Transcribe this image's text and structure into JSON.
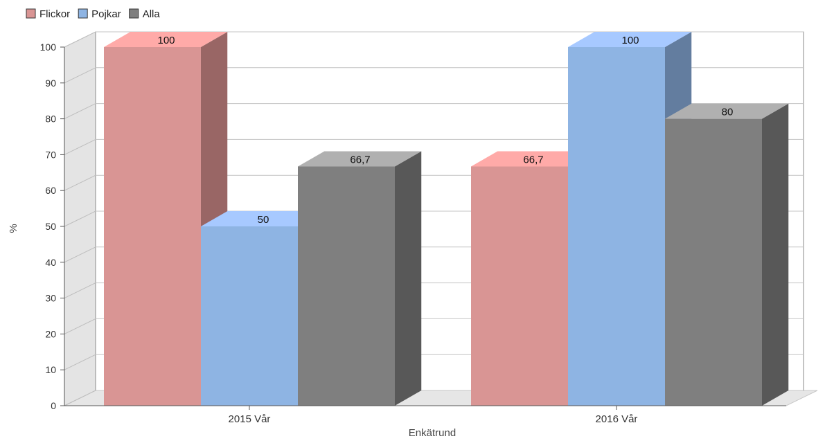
{
  "chart_data": {
    "type": "bar",
    "title": "",
    "xlabel": "Enkätrund",
    "ylabel": "%",
    "ylim": [
      0,
      100
    ],
    "yticks": [
      0,
      10,
      20,
      30,
      40,
      50,
      60,
      70,
      80,
      90,
      100
    ],
    "grid": true,
    "legend_position": "top-left",
    "categories": [
      "2015 Vår",
      "2016 Vår"
    ],
    "series": [
      {
        "name": "Flickor",
        "values": [
          100,
          66.7
        ],
        "labels": [
          "100",
          "66,7"
        ],
        "color": "#d99594",
        "top_color": "#ffaaa8",
        "side_color": "#996665"
      },
      {
        "name": "Pojkar",
        "values": [
          50,
          100
        ],
        "labels": [
          "50",
          "100"
        ],
        "color": "#8eb4e3",
        "top_color": "#a7c9ff",
        "side_color": "#637d9f"
      },
      {
        "name": "Alla",
        "values": [
          66.7,
          80
        ],
        "labels": [
          "66,7",
          "80"
        ],
        "color": "#7f7f7f",
        "top_color": "#b0b0b0",
        "side_color": "#585858"
      }
    ]
  }
}
